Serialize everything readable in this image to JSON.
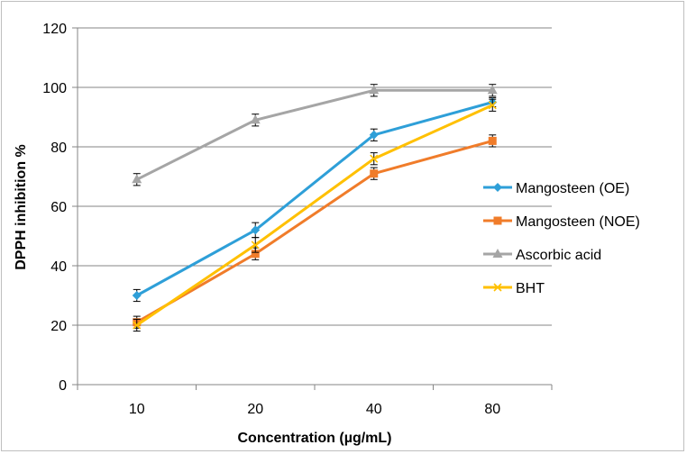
{
  "chart_data": {
    "type": "line",
    "title": "",
    "xlabel": "Concentration (µg/mL)",
    "ylabel": "DPPH inhibition %",
    "categories": [
      "10",
      "20",
      "40",
      "80"
    ],
    "ylim": [
      0,
      120
    ],
    "yticks": [
      0,
      20,
      40,
      60,
      80,
      100,
      120
    ],
    "grid": "horizontal",
    "legend_position": "right",
    "series": [
      {
        "name": "Mangosteen (OE)",
        "color": "#2e9fd8",
        "marker": "diamond",
        "values": [
          30,
          52,
          84,
          95
        ],
        "errors": [
          2,
          2.5,
          2,
          1.5
        ]
      },
      {
        "name": "Mangosteen (NOE)",
        "color": "#f07c2a",
        "marker": "square",
        "values": [
          21,
          44,
          71,
          82
        ],
        "errors": [
          2,
          2,
          2,
          2
        ]
      },
      {
        "name": "Ascorbic acid",
        "color": "#a5a5a5",
        "marker": "triangle",
        "values": [
          69,
          89,
          99,
          99
        ],
        "errors": [
          2,
          2,
          2,
          2
        ]
      },
      {
        "name": "BHT",
        "color": "#ffc000",
        "marker": "x",
        "values": [
          20,
          47,
          76,
          94
        ],
        "errors": [
          2,
          2.5,
          2,
          2
        ]
      }
    ]
  }
}
